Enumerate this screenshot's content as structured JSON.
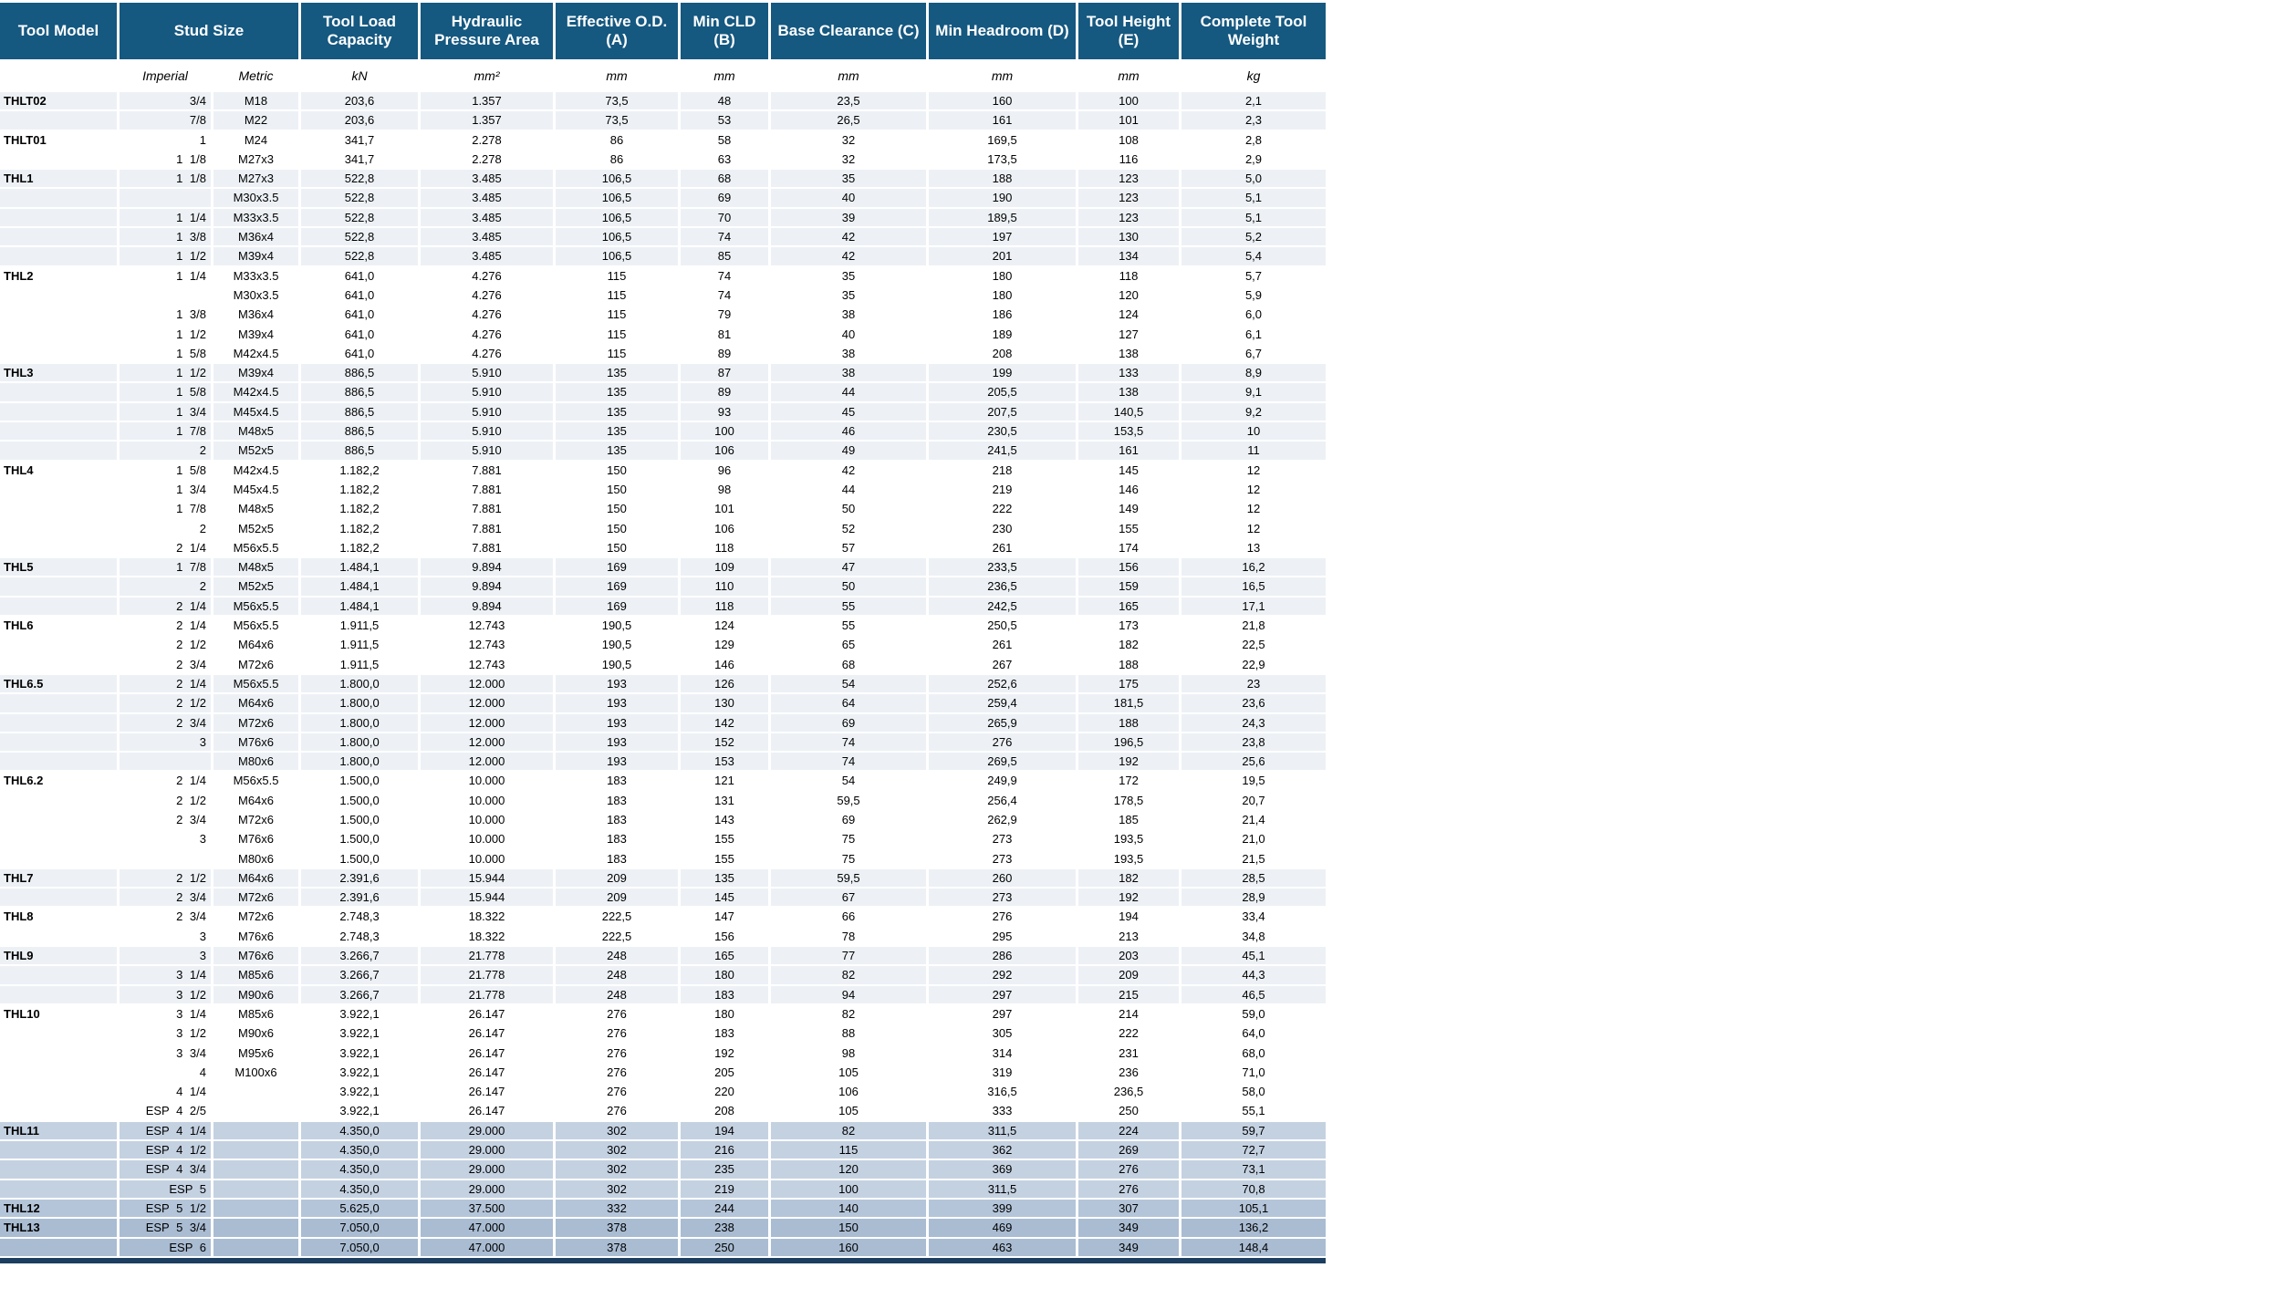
{
  "colors": {
    "header_bg": "#155880",
    "shade_gray": "#edf1f5",
    "shade_white": "#ffffff",
    "shade_blue1": "#c4d1e1",
    "shade_blue2": "#b4c5d9",
    "shade_blue3": "#a9bcd2",
    "bottom_bar": "#1c3e60"
  },
  "table": {
    "header": {
      "tool_model": "Tool Model",
      "stud_size": "Stud Size",
      "load": "Tool Load Capacity",
      "area": "Hydraulic Pressure Area",
      "od": "Effective O.D. (A)",
      "cld": "Min CLD (B)",
      "clear": "Base Clearance (C)",
      "headroom": "Min Headroom (D)",
      "height": "Tool Height (E)",
      "weight": "Complete Tool Weight"
    },
    "units": {
      "imperial": "Imperial",
      "metric": "Metric",
      "load": "kN",
      "area": "mm²",
      "od": "mm",
      "cld": "mm",
      "clear": "mm",
      "headroom": "mm",
      "height": "mm",
      "weight": "kg"
    },
    "groups": [
      {
        "model": "THLT02",
        "shade": "gray",
        "rows": [
          [
            "3/4",
            "M18",
            "203,6",
            "1.357",
            "73,5",
            "48",
            "23,5",
            "160",
            "100",
            "2,1"
          ],
          [
            "7/8",
            "M22",
            "203,6",
            "1.357",
            "73,5",
            "53",
            "26,5",
            "161",
            "101",
            "2,3"
          ]
        ]
      },
      {
        "model": "THLT01",
        "shade": "white",
        "rows": [
          [
            "1",
            "M24",
            "341,7",
            "2.278",
            "86",
            "58",
            "32",
            "169,5",
            "108",
            "2,8"
          ],
          [
            "1 1/8",
            "M27x3",
            "341,7",
            "2.278",
            "86",
            "63",
            "32",
            "173,5",
            "116",
            "2,9"
          ]
        ]
      },
      {
        "model": "THL1",
        "shade": "gray",
        "rows": [
          [
            "1 1/8",
            "M27x3",
            "522,8",
            "3.485",
            "106,5",
            "68",
            "35",
            "188",
            "123",
            "5,0"
          ],
          [
            "",
            "M30x3.5",
            "522,8",
            "3.485",
            "106,5",
            "69",
            "40",
            "190",
            "123",
            "5,1"
          ],
          [
            "1 1/4",
            "M33x3.5",
            "522,8",
            "3.485",
            "106,5",
            "70",
            "39",
            "189,5",
            "123",
            "5,1"
          ],
          [
            "1 3/8",
            "M36x4",
            "522,8",
            "3.485",
            "106,5",
            "74",
            "42",
            "197",
            "130",
            "5,2"
          ],
          [
            "1 1/2",
            "M39x4",
            "522,8",
            "3.485",
            "106,5",
            "85",
            "42",
            "201",
            "134",
            "5,4"
          ]
        ]
      },
      {
        "model": "THL2",
        "shade": "white",
        "rows": [
          [
            "1 1/4",
            "M33x3.5",
            "641,0",
            "4.276",
            "115",
            "74",
            "35",
            "180",
            "118",
            "5,7"
          ],
          [
            "",
            "M30x3.5",
            "641,0",
            "4.276",
            "115",
            "74",
            "35",
            "180",
            "120",
            "5,9"
          ],
          [
            "1 3/8",
            "M36x4",
            "641,0",
            "4.276",
            "115",
            "79",
            "38",
            "186",
            "124",
            "6,0"
          ],
          [
            "1 1/2",
            "M39x4",
            "641,0",
            "4.276",
            "115",
            "81",
            "40",
            "189",
            "127",
            "6,1"
          ],
          [
            "1 5/8",
            "M42x4.5",
            "641,0",
            "4.276",
            "115",
            "89",
            "38",
            "208",
            "138",
            "6,7"
          ]
        ]
      },
      {
        "model": "THL3",
        "shade": "gray",
        "rows": [
          [
            "1 1/2",
            "M39x4",
            "886,5",
            "5.910",
            "135",
            "87",
            "38",
            "199",
            "133",
            "8,9"
          ],
          [
            "1 5/8",
            "M42x4.5",
            "886,5",
            "5.910",
            "135",
            "89",
            "44",
            "205,5",
            "138",
            "9,1"
          ],
          [
            "1 3/4",
            "M45x4.5",
            "886,5",
            "5.910",
            "135",
            "93",
            "45",
            "207,5",
            "140,5",
            "9,2"
          ],
          [
            "1 7/8",
            "M48x5",
            "886,5",
            "5.910",
            "135",
            "100",
            "46",
            "230,5",
            "153,5",
            "10"
          ],
          [
            "2",
            "M52x5",
            "886,5",
            "5.910",
            "135",
            "106",
            "49",
            "241,5",
            "161",
            "11"
          ]
        ]
      },
      {
        "model": "THL4",
        "shade": "white",
        "rows": [
          [
            "1 5/8",
            "M42x4.5",
            "1.182,2",
            "7.881",
            "150",
            "96",
            "42",
            "218",
            "145",
            "12"
          ],
          [
            "1 3/4",
            "M45x4.5",
            "1.182,2",
            "7.881",
            "150",
            "98",
            "44",
            "219",
            "146",
            "12"
          ],
          [
            "1 7/8",
            "M48x5",
            "1.182,2",
            "7.881",
            "150",
            "101",
            "50",
            "222",
            "149",
            "12"
          ],
          [
            "2",
            "M52x5",
            "1.182,2",
            "7.881",
            "150",
            "106",
            "52",
            "230",
            "155",
            "12"
          ],
          [
            "2 1/4",
            "M56x5.5",
            "1.182,2",
            "7.881",
            "150",
            "118",
            "57",
            "261",
            "174",
            "13"
          ]
        ]
      },
      {
        "model": "THL5",
        "shade": "gray",
        "rows": [
          [
            "1 7/8",
            "M48x5",
            "1.484,1",
            "9.894",
            "169",
            "109",
            "47",
            "233,5",
            "156",
            "16,2"
          ],
          [
            "2",
            "M52x5",
            "1.484,1",
            "9.894",
            "169",
            "110",
            "50",
            "236,5",
            "159",
            "16,5"
          ],
          [
            "2 1/4",
            "M56x5.5",
            "1.484,1",
            "9.894",
            "169",
            "118",
            "55",
            "242,5",
            "165",
            "17,1"
          ]
        ]
      },
      {
        "model": "THL6",
        "shade": "white",
        "rows": [
          [
            "2 1/4",
            "M56x5.5",
            "1.911,5",
            "12.743",
            "190,5",
            "124",
            "55",
            "250,5",
            "173",
            "21,8"
          ],
          [
            "2 1/2",
            "M64x6",
            "1.911,5",
            "12.743",
            "190,5",
            "129",
            "65",
            "261",
            "182",
            "22,5"
          ],
          [
            "2 3/4",
            "M72x6",
            "1.911,5",
            "12.743",
            "190,5",
            "146",
            "68",
            "267",
            "188",
            "22,9"
          ]
        ]
      },
      {
        "model": "THL6.5",
        "shade": "gray",
        "rows": [
          [
            "2 1/4",
            "M56x5.5",
            "1.800,0",
            "12.000",
            "193",
            "126",
            "54",
            "252,6",
            "175",
            "23"
          ],
          [
            "2 1/2",
            "M64x6",
            "1.800,0",
            "12.000",
            "193",
            "130",
            "64",
            "259,4",
            "181,5",
            "23,6"
          ],
          [
            "2 3/4",
            "M72x6",
            "1.800,0",
            "12.000",
            "193",
            "142",
            "69",
            "265,9",
            "188",
            "24,3"
          ],
          [
            "3",
            "M76x6",
            "1.800,0",
            "12.000",
            "193",
            "152",
            "74",
            "276",
            "196,5",
            "23,8"
          ],
          [
            "",
            "M80x6",
            "1.800,0",
            "12.000",
            "193",
            "153",
            "74",
            "269,5",
            "192",
            "25,6"
          ]
        ]
      },
      {
        "model": "THL6.2",
        "shade": "white",
        "rows": [
          [
            "2 1/4",
            "M56x5.5",
            "1.500,0",
            "10.000",
            "183",
            "121",
            "54",
            "249,9",
            "172",
            "19,5"
          ],
          [
            "2 1/2",
            "M64x6",
            "1.500,0",
            "10.000",
            "183",
            "131",
            "59,5",
            "256,4",
            "178,5",
            "20,7"
          ],
          [
            "2 3/4",
            "M72x6",
            "1.500,0",
            "10.000",
            "183",
            "143",
            "69",
            "262,9",
            "185",
            "21,4"
          ],
          [
            "3",
            "M76x6",
            "1.500,0",
            "10.000",
            "183",
            "155",
            "75",
            "273",
            "193,5",
            "21,0"
          ],
          [
            "",
            "M80x6",
            "1.500,0",
            "10.000",
            "183",
            "155",
            "75",
            "273",
            "193,5",
            "21,5"
          ]
        ]
      },
      {
        "model": "THL7",
        "shade": "gray",
        "rows": [
          [
            "2 1/2",
            "M64x6",
            "2.391,6",
            "15.944",
            "209",
            "135",
            "59,5",
            "260",
            "182",
            "28,5"
          ],
          [
            "2 3/4",
            "M72x6",
            "2.391,6",
            "15.944",
            "209",
            "145",
            "67",
            "273",
            "192",
            "28,9"
          ]
        ]
      },
      {
        "model": "THL8",
        "shade": "white",
        "rows": [
          [
            "2 3/4",
            "M72x6",
            "2.748,3",
            "18.322",
            "222,5",
            "147",
            "66",
            "276",
            "194",
            "33,4"
          ],
          [
            "3",
            "M76x6",
            "2.748,3",
            "18.322",
            "222,5",
            "156",
            "78",
            "295",
            "213",
            "34,8"
          ]
        ]
      },
      {
        "model": "THL9",
        "shade": "gray",
        "rows": [
          [
            "3",
            "M76x6",
            "3.266,7",
            "21.778",
            "248",
            "165",
            "77",
            "286",
            "203",
            "45,1"
          ],
          [
            "3 1/4",
            "M85x6",
            "3.266,7",
            "21.778",
            "248",
            "180",
            "82",
            "292",
            "209",
            "44,3"
          ],
          [
            "3 1/2",
            "M90x6",
            "3.266,7",
            "21.778",
            "248",
            "183",
            "94",
            "297",
            "215",
            "46,5"
          ]
        ]
      },
      {
        "model": "THL10",
        "shade": "white",
        "rows": [
          [
            "3 1/4",
            "M85x6",
            "3.922,1",
            "26.147",
            "276",
            "180",
            "82",
            "297",
            "214",
            "59,0"
          ],
          [
            "3 1/2",
            "M90x6",
            "3.922,1",
            "26.147",
            "276",
            "183",
            "88",
            "305",
            "222",
            "64,0"
          ],
          [
            "3 3/4",
            "M95x6",
            "3.922,1",
            "26.147",
            "276",
            "192",
            "98",
            "314",
            "231",
            "68,0"
          ],
          [
            "4",
            "M100x6",
            "3.922,1",
            "26.147",
            "276",
            "205",
            "105",
            "319",
            "236",
            "71,0"
          ],
          [
            "4 1/4",
            "",
            "3.922,1",
            "26.147",
            "276",
            "220",
            "106",
            "316,5",
            "236,5",
            "58,0"
          ],
          [
            "ESP 4 2/5",
            "",
            "3.922,1",
            "26.147",
            "276",
            "208",
            "105",
            "333",
            "250",
            "55,1"
          ]
        ]
      },
      {
        "model": "THL11",
        "shade": "blue1",
        "rows": [
          [
            "ESP 4 1/4",
            "",
            "4.350,0",
            "29.000",
            "302",
            "194",
            "82",
            "311,5",
            "224",
            "59,7"
          ],
          [
            "ESP 4 1/2",
            "",
            "4.350,0",
            "29.000",
            "302",
            "216",
            "115",
            "362",
            "269",
            "72,7"
          ],
          [
            "ESP 4 3/4",
            "",
            "4.350,0",
            "29.000",
            "302",
            "235",
            "120",
            "369",
            "276",
            "73,1"
          ],
          [
            "ESP 5",
            "",
            "4.350,0",
            "29.000",
            "302",
            "219",
            "100",
            "311,5",
            "276",
            "70,8"
          ]
        ]
      },
      {
        "model": "THL12",
        "shade": "blue2",
        "rows": [
          [
            "ESP 5 1/2",
            "",
            "5.625,0",
            "37.500",
            "332",
            "244",
            "140",
            "399",
            "307",
            "105,1"
          ]
        ]
      },
      {
        "model": "THL13",
        "shade": "blue3",
        "rows": [
          [
            "ESP 5 3/4",
            "",
            "7.050,0",
            "47.000",
            "378",
            "238",
            "150",
            "469",
            "349",
            "136,2"
          ],
          [
            "ESP 6",
            "",
            "7.050,0",
            "47.000",
            "378",
            "250",
            "160",
            "463",
            "349",
            "148,4"
          ]
        ]
      }
    ]
  }
}
